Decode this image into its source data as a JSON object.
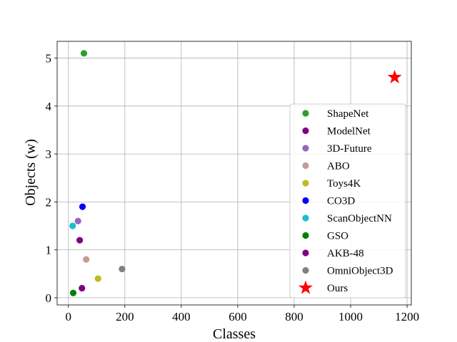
{
  "chart_data": {
    "type": "scatter",
    "xlabel": "Classes",
    "ylabel": "Objects (w)",
    "xlim": [
      -40,
      1215
    ],
    "ylim": [
      -0.15,
      5.35
    ],
    "xticks": [
      0,
      200,
      400,
      600,
      800,
      1000,
      1200
    ],
    "yticks": [
      0,
      1,
      2,
      3,
      4,
      5
    ],
    "grid": true,
    "legend_position": "lower-right",
    "series": [
      {
        "name": "ShapeNet",
        "x": 55,
        "y": 5.1,
        "color": "#2ca02c",
        "marker": "circle"
      },
      {
        "name": "ModelNet",
        "x": 40,
        "y": 1.2,
        "color": "#800080",
        "marker": "circle"
      },
      {
        "name": "3D-Future",
        "x": 34,
        "y": 1.6,
        "color": "#9467bd",
        "marker": "circle"
      },
      {
        "name": "ABO",
        "x": 63,
        "y": 0.8,
        "color": "#c49c94",
        "marker": "circle"
      },
      {
        "name": "Toys4K",
        "x": 105,
        "y": 0.4,
        "color": "#bcbd22",
        "marker": "circle"
      },
      {
        "name": "CO3D",
        "x": 50,
        "y": 1.9,
        "color": "#0000ff",
        "marker": "circle"
      },
      {
        "name": "ScanObjectNN",
        "x": 15,
        "y": 1.5,
        "color": "#17becf",
        "marker": "circle"
      },
      {
        "name": "GSO",
        "x": 17,
        "y": 0.1,
        "color": "#008000",
        "marker": "circle"
      },
      {
        "name": "AKB-48",
        "x": 48,
        "y": 0.2,
        "color": "#800080",
        "marker": "circle"
      },
      {
        "name": "OmniObject3D",
        "x": 190,
        "y": 0.6,
        "color": "#808080",
        "marker": "circle"
      },
      {
        "name": "Ours",
        "x": 1156,
        "y": 4.6,
        "color": "#ff0000",
        "marker": "star"
      }
    ]
  }
}
